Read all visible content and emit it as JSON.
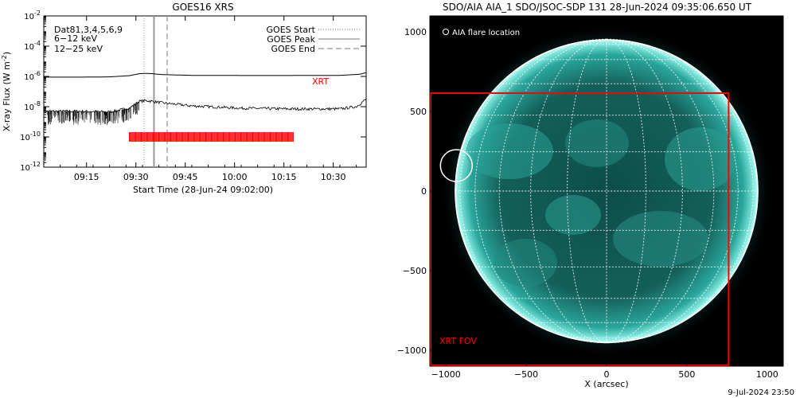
{
  "chart_data": [
    {
      "type": "line",
      "title": "GOES16 XRS",
      "xlabel": "Start Time (28-Jun-24 09:02:00)",
      "ylabel": "X-ray Flux (W m",
      "ylabel_sup": "-2",
      "ylabel_end": ")",
      "xlim_minutes": [
        0,
        98
      ],
      "ylim_log10": [
        -12,
        -2
      ],
      "x_ticks": [
        {
          "label": "09:15",
          "minute": 13
        },
        {
          "label": "09:30",
          "minute": 28
        },
        {
          "label": "09:45",
          "minute": 43
        },
        {
          "label": "10:00",
          "minute": 58
        },
        {
          "label": "10:15",
          "minute": 73
        },
        {
          "label": "10:30",
          "minute": 88
        }
      ],
      "y_ticks": [
        {
          "base": "10",
          "exp": "-2",
          "log": -2
        },
        {
          "base": "10",
          "exp": "-4",
          "log": -4
        },
        {
          "base": "10",
          "exp": "-6",
          "log": -6
        },
        {
          "base": "10",
          "exp": "-8",
          "log": -8
        },
        {
          "base": "10",
          "exp": "-10",
          "log": -10
        },
        {
          "base": "10",
          "exp": "-12",
          "log": -12
        }
      ],
      "legend_channels": [
        {
          "label": "Dat81,3,4,5,6,9",
          "color": "#000000"
        },
        {
          "label": "6−12 keV",
          "color": "#cc00cc"
        },
        {
          "label": "12−25 keV",
          "color": "#00cc00"
        }
      ],
      "legend_markers": [
        {
          "label": "GOES Start",
          "style": "dotted",
          "minute": 30.5
        },
        {
          "label": "GOES Peak",
          "style": "solid",
          "minute": 33.5
        },
        {
          "label": "GOES End",
          "style": "dashed",
          "minute": 37.5
        }
      ],
      "series": [
        {
          "color": "#000000",
          "minutes": [
            0,
            10,
            20,
            26,
            29,
            31,
            33,
            36,
            45,
            60,
            75,
            90,
            96,
            98
          ],
          "log_flux": [
            -6.05,
            -6.05,
            -6.03,
            -5.95,
            -5.82,
            -5.8,
            -5.82,
            -5.88,
            -5.93,
            -5.94,
            -5.94,
            -5.93,
            -5.86,
            -5.75
          ]
        },
        {
          "color": "#000000",
          "minutes": [
            0,
            10,
            20,
            26,
            29,
            31,
            33,
            36,
            45,
            60,
            75,
            90,
            95,
            98
          ],
          "log_flux": [
            -8.3,
            -8.3,
            -8.35,
            -8.1,
            -7.65,
            -7.6,
            -7.65,
            -7.75,
            -7.95,
            -8.1,
            -8.15,
            -8.15,
            -8.0,
            -7.5
          ]
        }
      ],
      "xrt": {
        "label": "XRT",
        "color": "#ff0000",
        "log_flux": -10,
        "minutes_range": [
          26,
          76
        ]
      }
    },
    {
      "type": "scatter",
      "title": "SDO/AIA AIA_1 SDO/JSOC-SDP 131 28-Jun-2024 09:35:06.650 UT",
      "xlabel": "X (arcsec)",
      "ylabel": "",
      "xlim": [
        -1100,
        1100
      ],
      "ylim": [
        -1100,
        1100
      ],
      "x_ticks": [
        "−1000",
        "−500",
        "0",
        "500",
        "1000"
      ],
      "x_tick_values": [
        -1000,
        -500,
        0,
        500,
        1000
      ],
      "y_ticks": [
        "1000",
        "500",
        "0",
        "−500",
        "−1000"
      ],
      "y_tick_values": [
        1000,
        500,
        0,
        -500,
        -1000
      ],
      "solar_radius_arcsec": 945,
      "flare_legend": "AIA flare location",
      "flare_location": {
        "x": -935,
        "y": 160
      },
      "xrt_fov": {
        "label": "XRT FOV",
        "x_range": [
          -1100,
          760
        ],
        "y_range": [
          -1100,
          615
        ],
        "color": "#ff0000"
      }
    }
  ],
  "footer": {
    "date": "9-Jul-2024 23:50"
  }
}
